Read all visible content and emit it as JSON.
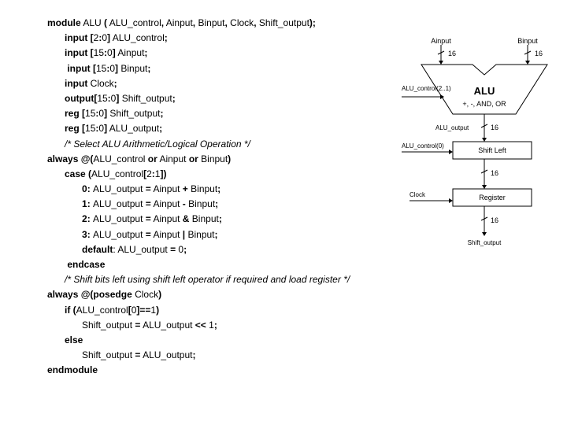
{
  "lines": [
    {
      "indent": "",
      "segs": [
        {
          "t": "module",
          "b": true
        },
        {
          "t": " ALU "
        },
        {
          "t": "(",
          "b": true
        },
        {
          "t": " ALU_control"
        },
        {
          "t": ",",
          "b": true
        },
        {
          "t": " Ainput"
        },
        {
          "t": ",",
          "b": true
        },
        {
          "t": " Binput"
        },
        {
          "t": ",",
          "b": true
        },
        {
          "t": " Clock"
        },
        {
          "t": ",",
          "b": true
        },
        {
          "t": " Shift_output"
        },
        {
          "t": ");",
          "b": true
        }
      ]
    },
    {
      "indent": "i1",
      "segs": [
        {
          "t": "input [",
          "b": true
        },
        {
          "t": "2"
        },
        {
          "t": ":",
          "b": true
        },
        {
          "t": "0"
        },
        {
          "t": "]",
          "b": true
        },
        {
          "t": " ALU_control"
        },
        {
          "t": ";",
          "b": true
        }
      ]
    },
    {
      "indent": "i1",
      "segs": [
        {
          "t": "input [",
          "b": true
        },
        {
          "t": "15"
        },
        {
          "t": ":",
          "b": true
        },
        {
          "t": "0"
        },
        {
          "t": "]",
          "b": true
        },
        {
          "t": " Ainput"
        },
        {
          "t": ";",
          "b": true
        }
      ]
    },
    {
      "indent": "i1",
      "segs": [
        {
          "t": " input [",
          "b": true
        },
        {
          "t": "15"
        },
        {
          "t": ":",
          "b": true
        },
        {
          "t": "0"
        },
        {
          "t": "]",
          "b": true
        },
        {
          "t": " Binput"
        },
        {
          "t": ";",
          "b": true
        }
      ]
    },
    {
      "indent": "i1",
      "segs": [
        {
          "t": "input",
          "b": true
        },
        {
          "t": " Clock"
        },
        {
          "t": ";",
          "b": true
        }
      ]
    },
    {
      "indent": "i1",
      "segs": [
        {
          "t": "output[",
          "b": true
        },
        {
          "t": "15"
        },
        {
          "t": ":",
          "b": true
        },
        {
          "t": "0"
        },
        {
          "t": "]",
          "b": true
        },
        {
          "t": " Shift_output"
        },
        {
          "t": ";",
          "b": true
        }
      ]
    },
    {
      "indent": "i1",
      "segs": [
        {
          "t": "reg [",
          "b": true
        },
        {
          "t": "15"
        },
        {
          "t": ":",
          "b": true
        },
        {
          "t": "0"
        },
        {
          "t": "]",
          "b": true
        },
        {
          "t": " Shift_output"
        },
        {
          "t": ";",
          "b": true
        }
      ]
    },
    {
      "indent": "i1",
      "segs": [
        {
          "t": "reg [",
          "b": true
        },
        {
          "t": "15"
        },
        {
          "t": ":",
          "b": true
        },
        {
          "t": "0"
        },
        {
          "t": "]",
          "b": true
        },
        {
          "t": " ALU_output"
        },
        {
          "t": ";",
          "b": true
        }
      ]
    },
    {
      "indent": "i1",
      "segs": [
        {
          "t": "/* Select ALU Arithmetic/Logical Operation */",
          "i": true
        }
      ]
    },
    {
      "indent": "",
      "segs": [
        {
          "t": "always @(",
          "b": true
        },
        {
          "t": "ALU_control "
        },
        {
          "t": "or",
          "b": true
        },
        {
          "t": " Ainput "
        },
        {
          "t": "or",
          "b": true
        },
        {
          "t": " Binput"
        },
        {
          "t": ")",
          "b": true
        }
      ]
    },
    {
      "indent": "i1",
      "segs": [
        {
          "t": "case (",
          "b": true
        },
        {
          "t": "ALU_control"
        },
        {
          "t": "[",
          "b": true
        },
        {
          "t": "2"
        },
        {
          "t": ":",
          "b": true
        },
        {
          "t": "1"
        },
        {
          "t": "])",
          "b": true
        }
      ]
    },
    {
      "indent": "i2",
      "segs": [
        {
          "t": "0",
          "b": true
        },
        {
          "t": ": ",
          "b": true
        },
        {
          "t": "ALU_output "
        },
        {
          "t": "=",
          "b": true
        },
        {
          "t": " Ainput "
        },
        {
          "t": "+",
          "b": true
        },
        {
          "t": " Binput"
        },
        {
          "t": ";",
          "b": true
        }
      ]
    },
    {
      "indent": "i2",
      "segs": [
        {
          "t": "1",
          "b": true
        },
        {
          "t": ": ",
          "b": true
        },
        {
          "t": "ALU_output "
        },
        {
          "t": "=",
          "b": true
        },
        {
          "t": " Ainput "
        },
        {
          "t": "-",
          "b": true
        },
        {
          "t": " Binput"
        },
        {
          "t": ";",
          "b": true
        }
      ]
    },
    {
      "indent": "i2",
      "segs": [
        {
          "t": "2",
          "b": true
        },
        {
          "t": ": ",
          "b": true
        },
        {
          "t": "ALU_output "
        },
        {
          "t": "=",
          "b": true
        },
        {
          "t": " Ainput "
        },
        {
          "t": "&",
          "b": true
        },
        {
          "t": " Binput"
        },
        {
          "t": ";",
          "b": true
        }
      ]
    },
    {
      "indent": "i2",
      "segs": [
        {
          "t": "3",
          "b": true
        },
        {
          "t": ": ",
          "b": true
        },
        {
          "t": "ALU_output "
        },
        {
          "t": "=",
          "b": true
        },
        {
          "t": " Ainput "
        },
        {
          "t": "|",
          "b": true
        },
        {
          "t": " Binput"
        },
        {
          "t": ";",
          "b": true
        }
      ]
    },
    {
      "indent": "i2",
      "segs": [
        {
          "t": "default",
          "b": true
        },
        {
          "t": ": ALU_output "
        },
        {
          "t": "=",
          "b": true
        },
        {
          "t": " 0"
        },
        {
          "t": ";",
          "b": true
        }
      ]
    },
    {
      "indent": "i1",
      "segs": [
        {
          "t": " endcase",
          "b": true
        }
      ]
    },
    {
      "indent": "i1",
      "segs": [
        {
          "t": "/* Shift bits left using shift left operator if required and load register */",
          "i": true
        }
      ]
    },
    {
      "indent": "",
      "segs": [
        {
          "t": "always @(posedge",
          "b": true
        },
        {
          "t": " Clock"
        },
        {
          "t": ")",
          "b": true
        }
      ]
    },
    {
      "indent": "i1",
      "segs": [
        {
          "t": "if (",
          "b": true
        },
        {
          "t": "ALU_control"
        },
        {
          "t": "[",
          "b": true
        },
        {
          "t": "0"
        },
        {
          "t": "]==",
          "b": true
        },
        {
          "t": "1"
        },
        {
          "t": ")",
          "b": true
        }
      ]
    },
    {
      "indent": "i2",
      "segs": [
        {
          "t": "Shift_output "
        },
        {
          "t": "=",
          "b": true
        },
        {
          "t": " ALU_output "
        },
        {
          "t": "<<",
          "b": true
        },
        {
          "t": " 1"
        },
        {
          "t": ";",
          "b": true
        }
      ]
    },
    {
      "indent": "i1",
      "segs": [
        {
          "t": "else",
          "b": true
        }
      ]
    },
    {
      "indent": "i2",
      "segs": [
        {
          "t": "Shift_output "
        },
        {
          "t": "=",
          "b": true
        },
        {
          "t": " ALU_output"
        },
        {
          "t": ";",
          "b": true
        }
      ]
    },
    {
      "indent": "",
      "segs": [
        {
          "t": "endmodule",
          "b": true
        }
      ]
    }
  ],
  "diagram": {
    "ainput": "Ainput",
    "binput": "Binput",
    "alu": "ALU",
    "aluops": "+, -, AND, OR",
    "alu_control": "ALU_control(2..1)",
    "alu_output": "ALU_output",
    "alu_control0": "ALU_control(0)",
    "shift_left": "Shift Left",
    "clock": "Clock",
    "register": "Register",
    "shift_output": "Shift_output",
    "width": "16"
  }
}
